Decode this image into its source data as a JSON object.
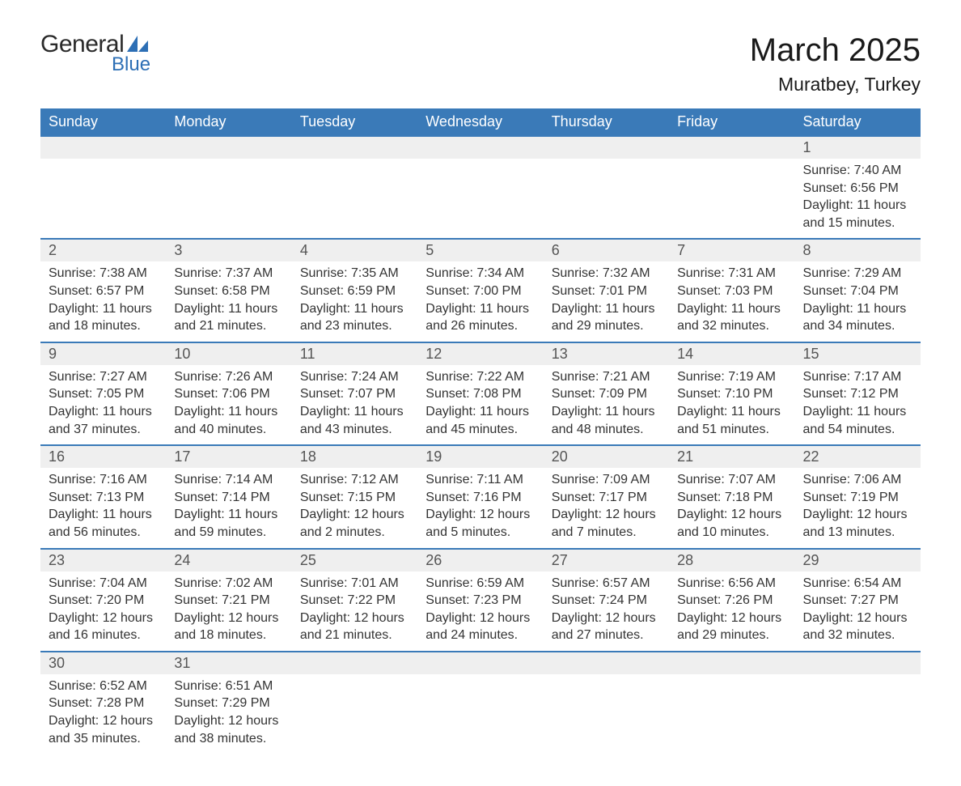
{
  "brand": {
    "word1": "General",
    "word2": "Blue",
    "accent": "#2d6fb5",
    "text_color": "#2a2a2a"
  },
  "title": "March 2025",
  "location": "Muratbey, Turkey",
  "header_bg": "#3a7ab8",
  "header_fg": "#ffffff",
  "daynum_bg": "#efefef",
  "row_border": "#3a7ab8",
  "columns": [
    "Sunday",
    "Monday",
    "Tuesday",
    "Wednesday",
    "Thursday",
    "Friday",
    "Saturday"
  ],
  "weeks": [
    [
      null,
      null,
      null,
      null,
      null,
      null,
      {
        "n": "1",
        "sunrise": "7:40 AM",
        "sunset": "6:56 PM",
        "daylight": "11 hours and 15 minutes."
      }
    ],
    [
      {
        "n": "2",
        "sunrise": "7:38 AM",
        "sunset": "6:57 PM",
        "daylight": "11 hours and 18 minutes."
      },
      {
        "n": "3",
        "sunrise": "7:37 AM",
        "sunset": "6:58 PM",
        "daylight": "11 hours and 21 minutes."
      },
      {
        "n": "4",
        "sunrise": "7:35 AM",
        "sunset": "6:59 PM",
        "daylight": "11 hours and 23 minutes."
      },
      {
        "n": "5",
        "sunrise": "7:34 AM",
        "sunset": "7:00 PM",
        "daylight": "11 hours and 26 minutes."
      },
      {
        "n": "6",
        "sunrise": "7:32 AM",
        "sunset": "7:01 PM",
        "daylight": "11 hours and 29 minutes."
      },
      {
        "n": "7",
        "sunrise": "7:31 AM",
        "sunset": "7:03 PM",
        "daylight": "11 hours and 32 minutes."
      },
      {
        "n": "8",
        "sunrise": "7:29 AM",
        "sunset": "7:04 PM",
        "daylight": "11 hours and 34 minutes."
      }
    ],
    [
      {
        "n": "9",
        "sunrise": "7:27 AM",
        "sunset": "7:05 PM",
        "daylight": "11 hours and 37 minutes."
      },
      {
        "n": "10",
        "sunrise": "7:26 AM",
        "sunset": "7:06 PM",
        "daylight": "11 hours and 40 minutes."
      },
      {
        "n": "11",
        "sunrise": "7:24 AM",
        "sunset": "7:07 PM",
        "daylight": "11 hours and 43 minutes."
      },
      {
        "n": "12",
        "sunrise": "7:22 AM",
        "sunset": "7:08 PM",
        "daylight": "11 hours and 45 minutes."
      },
      {
        "n": "13",
        "sunrise": "7:21 AM",
        "sunset": "7:09 PM",
        "daylight": "11 hours and 48 minutes."
      },
      {
        "n": "14",
        "sunrise": "7:19 AM",
        "sunset": "7:10 PM",
        "daylight": "11 hours and 51 minutes."
      },
      {
        "n": "15",
        "sunrise": "7:17 AM",
        "sunset": "7:12 PM",
        "daylight": "11 hours and 54 minutes."
      }
    ],
    [
      {
        "n": "16",
        "sunrise": "7:16 AM",
        "sunset": "7:13 PM",
        "daylight": "11 hours and 56 minutes."
      },
      {
        "n": "17",
        "sunrise": "7:14 AM",
        "sunset": "7:14 PM",
        "daylight": "11 hours and 59 minutes."
      },
      {
        "n": "18",
        "sunrise": "7:12 AM",
        "sunset": "7:15 PM",
        "daylight": "12 hours and 2 minutes."
      },
      {
        "n": "19",
        "sunrise": "7:11 AM",
        "sunset": "7:16 PM",
        "daylight": "12 hours and 5 minutes."
      },
      {
        "n": "20",
        "sunrise": "7:09 AM",
        "sunset": "7:17 PM",
        "daylight": "12 hours and 7 minutes."
      },
      {
        "n": "21",
        "sunrise": "7:07 AM",
        "sunset": "7:18 PM",
        "daylight": "12 hours and 10 minutes."
      },
      {
        "n": "22",
        "sunrise": "7:06 AM",
        "sunset": "7:19 PM",
        "daylight": "12 hours and 13 minutes."
      }
    ],
    [
      {
        "n": "23",
        "sunrise": "7:04 AM",
        "sunset": "7:20 PM",
        "daylight": "12 hours and 16 minutes."
      },
      {
        "n": "24",
        "sunrise": "7:02 AM",
        "sunset": "7:21 PM",
        "daylight": "12 hours and 18 minutes."
      },
      {
        "n": "25",
        "sunrise": "7:01 AM",
        "sunset": "7:22 PM",
        "daylight": "12 hours and 21 minutes."
      },
      {
        "n": "26",
        "sunrise": "6:59 AM",
        "sunset": "7:23 PM",
        "daylight": "12 hours and 24 minutes."
      },
      {
        "n": "27",
        "sunrise": "6:57 AM",
        "sunset": "7:24 PM",
        "daylight": "12 hours and 27 minutes."
      },
      {
        "n": "28",
        "sunrise": "6:56 AM",
        "sunset": "7:26 PM",
        "daylight": "12 hours and 29 minutes."
      },
      {
        "n": "29",
        "sunrise": "6:54 AM",
        "sunset": "7:27 PM",
        "daylight": "12 hours and 32 minutes."
      }
    ],
    [
      {
        "n": "30",
        "sunrise": "6:52 AM",
        "sunset": "7:28 PM",
        "daylight": "12 hours and 35 minutes."
      },
      {
        "n": "31",
        "sunrise": "6:51 AM",
        "sunset": "7:29 PM",
        "daylight": "12 hours and 38 minutes."
      },
      null,
      null,
      null,
      null,
      null
    ]
  ],
  "labels": {
    "sunrise": "Sunrise: ",
    "sunset": "Sunset: ",
    "daylight": "Daylight: "
  }
}
